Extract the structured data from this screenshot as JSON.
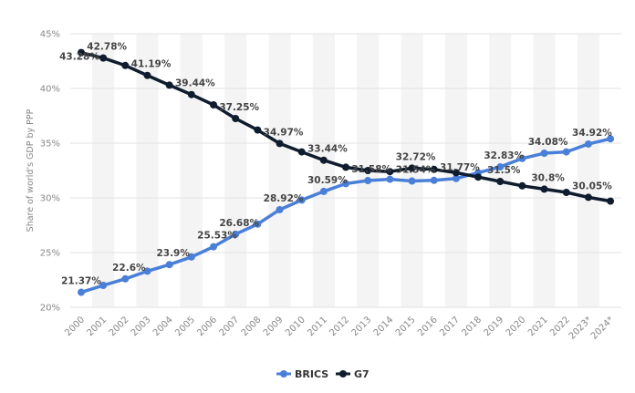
{
  "chart_data": {
    "type": "line",
    "ylabel": "Share of world's GDP by PPP",
    "ylim": [
      20,
      45
    ],
    "yticks": [
      "20%",
      "25%",
      "30%",
      "35%",
      "40%",
      "45%"
    ],
    "categories": [
      "2000",
      "2001",
      "2002",
      "2003",
      "2004",
      "2005",
      "2006",
      "2007",
      "2008",
      "2009",
      "2010",
      "2011",
      "2012",
      "2013",
      "2014",
      "2015",
      "2016",
      "2017",
      "2018",
      "2019",
      "2020",
      "2021",
      "2022",
      "2023*",
      "2024*"
    ],
    "grid": true,
    "legend_position": "bottom",
    "series": [
      {
        "name": "BRICS",
        "color": "#4a7fd8",
        "values": [
          21.37,
          22.0,
          22.6,
          23.3,
          23.9,
          24.6,
          25.53,
          26.68,
          27.6,
          28.92,
          29.8,
          30.59,
          31.3,
          31.58,
          31.7,
          31.54,
          31.6,
          31.77,
          32.3,
          32.83,
          33.6,
          34.08,
          34.2,
          34.92,
          35.4
        ],
        "labels": [
          "21.37%",
          null,
          "22.6%",
          null,
          "23.9%",
          null,
          "25.53%",
          "26.68%",
          null,
          "28.92%",
          null,
          "30.59%",
          null,
          "31.58%",
          null,
          "31.54%",
          null,
          "31.77%",
          null,
          "32.83%",
          null,
          "34.08%",
          null,
          "34.92%",
          null
        ]
      },
      {
        "name": "G7",
        "color": "#0f1c2e",
        "values": [
          43.28,
          42.78,
          42.1,
          41.19,
          40.3,
          39.44,
          38.5,
          37.25,
          36.2,
          34.97,
          34.2,
          33.44,
          32.8,
          32.5,
          32.4,
          32.72,
          32.6,
          32.3,
          31.9,
          31.5,
          31.1,
          30.8,
          30.5,
          30.05,
          29.7
        ],
        "labels": [
          "43.28%",
          "42.78%",
          null,
          "41.19%",
          null,
          "39.44%",
          null,
          "37.25%",
          null,
          "34.97%",
          null,
          "33.44%",
          null,
          null,
          null,
          "32.72%",
          null,
          null,
          null,
          "31.5%",
          null,
          "30.8%",
          null,
          "30.05%",
          null
        ]
      }
    ]
  }
}
